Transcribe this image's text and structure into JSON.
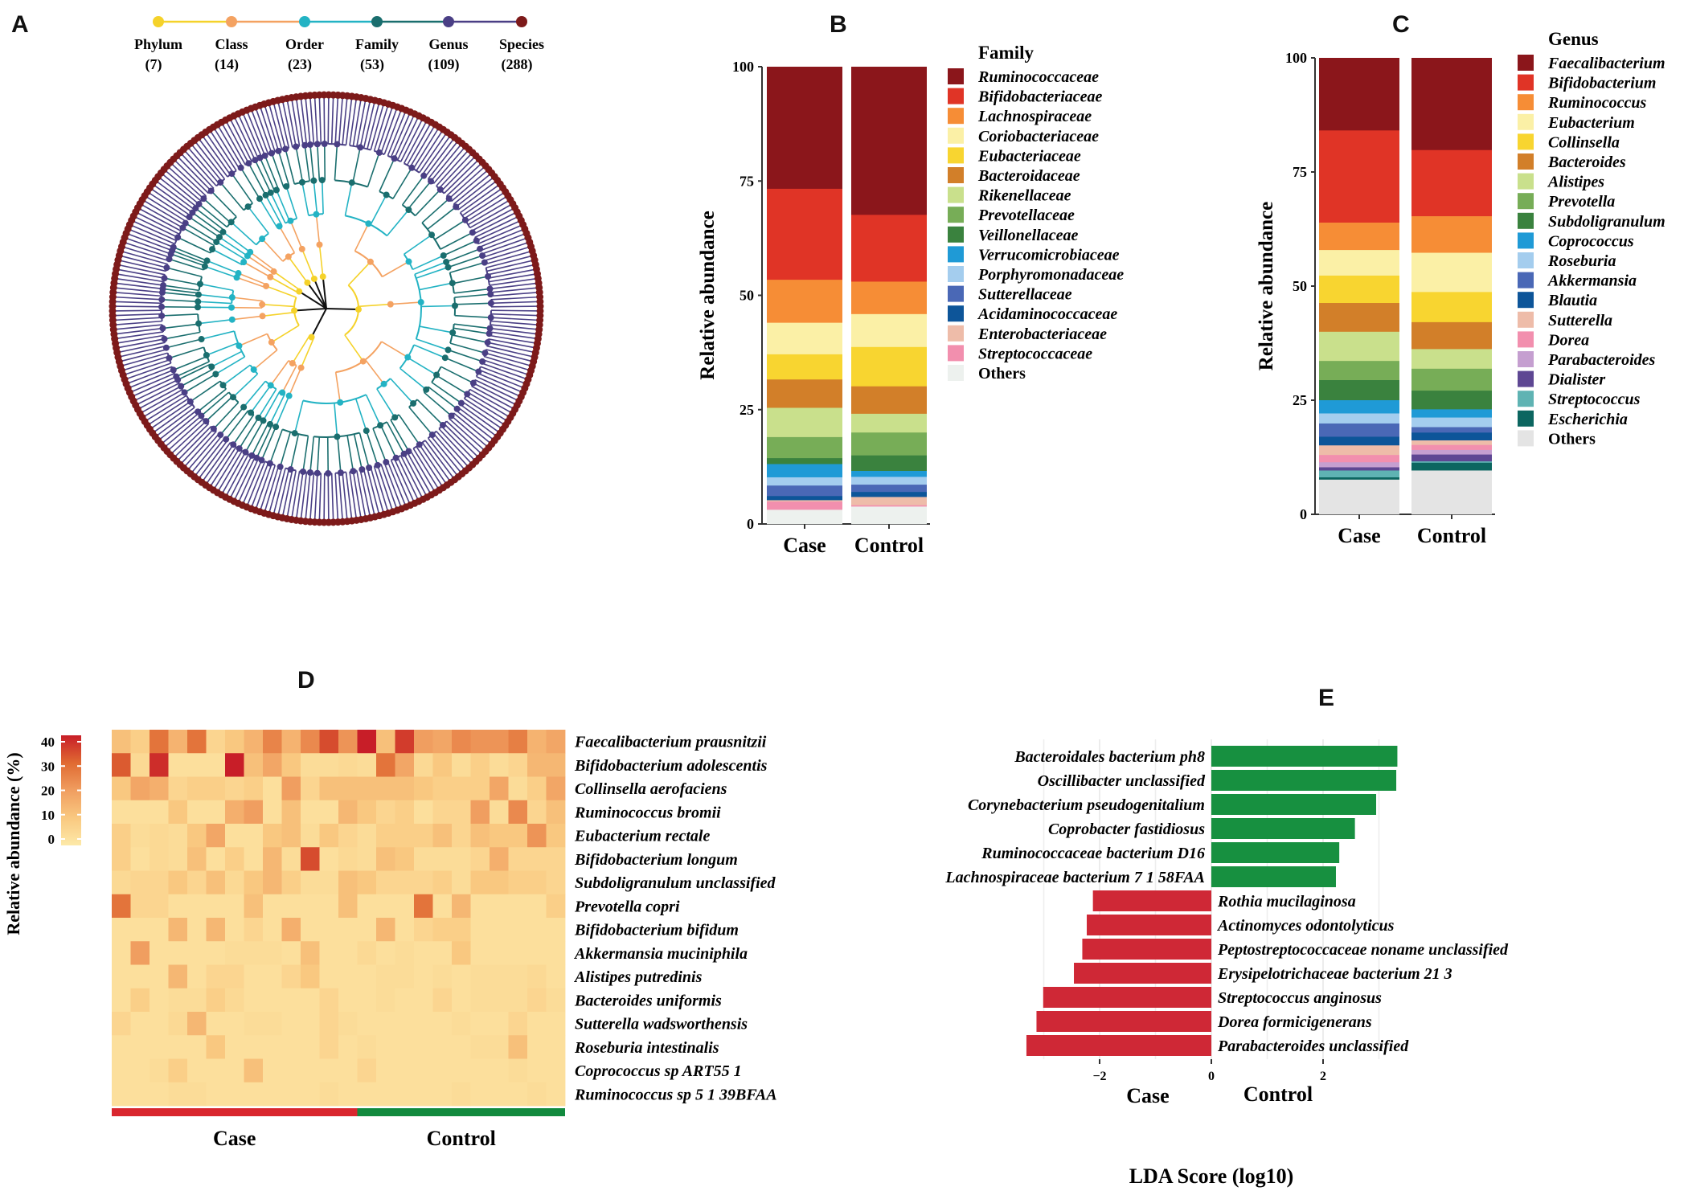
{
  "panel_labels": [
    "A",
    "B",
    "C",
    "D",
    "E"
  ],
  "colors": {
    "phylum": "#f5d22a",
    "class": "#f4a261",
    "order": "#23b3c4",
    "family": "#1a6e6e",
    "genus": "#4a3f85",
    "species": "#7d1a1a",
    "case": "#d9262e",
    "control": "#128a3e",
    "lda_case": "#cf2836",
    "lda_control": "#179040"
  },
  "chart_data": [
    {
      "panel": "A",
      "type": "tree",
      "levels": [
        {
          "name": "Phylum",
          "count_label": "(7)",
          "count": 7
        },
        {
          "name": "Class",
          "count_label": "(14)",
          "count": 14
        },
        {
          "name": "Order",
          "count_label": "(23)",
          "count": 23
        },
        {
          "name": "Family",
          "count_label": "(53)",
          "count": 53
        },
        {
          "name": "Genus",
          "count_label": "(109)",
          "count": 109
        },
        {
          "name": "Species",
          "count_label": "(288)",
          "count": 288
        }
      ]
    },
    {
      "panel": "B",
      "type": "bar",
      "stacked": true,
      "ylabel": "Relative abundance",
      "ylim": [
        0,
        100
      ],
      "yticks": [
        0,
        25,
        50,
        75,
        100
      ],
      "categories": [
        "Case",
        "Control"
      ],
      "legend_title": "Family",
      "series": [
        {
          "name": "Ruminococcaceae",
          "color": "#8b161b",
          "values": [
            26.7,
            32.4
          ]
        },
        {
          "name": "Bifidobacteriaceae",
          "color": "#e03426",
          "values": [
            19.9,
            14.6
          ]
        },
        {
          "name": "Lachnospiraceae",
          "color": "#f68d36",
          "values": [
            9.4,
            7.1
          ]
        },
        {
          "name": "Coriobacteriaceae",
          "color": "#fbf0a6",
          "values": [
            6.9,
            7.2
          ]
        },
        {
          "name": "Eubacteriaceae",
          "color": "#f8d530",
          "values": [
            5.5,
            8.6
          ]
        },
        {
          "name": "Bacteroidaceae",
          "color": "#d27f29",
          "values": [
            6.2,
            6.0
          ]
        },
        {
          "name": "Rikenellaceae",
          "color": "#c9e08c",
          "values": [
            6.4,
            4.1
          ]
        },
        {
          "name": "Prevotellaceae",
          "color": "#77ad57",
          "values": [
            4.6,
            5.0
          ]
        },
        {
          "name": "Veillonellaceae",
          "color": "#3a823e",
          "values": [
            1.3,
            3.4
          ]
        },
        {
          "name": "Verrucomicrobiaceae",
          "color": "#1f9ad6",
          "values": [
            2.9,
            1.3
          ]
        },
        {
          "name": "Porphyromonadaceae",
          "color": "#a4cdee",
          "values": [
            1.8,
            1.7
          ]
        },
        {
          "name": "Sutterellaceae",
          "color": "#4a68b6",
          "values": [
            2.3,
            1.6
          ]
        },
        {
          "name": "Acidaminococcaceae",
          "color": "#0d5599",
          "values": [
            0.9,
            1.1
          ]
        },
        {
          "name": "Enterobacteriaceae",
          "color": "#eebca9",
          "values": [
            0.3,
            1.8
          ]
        },
        {
          "name": "Streptococcaceae",
          "color": "#f28fae",
          "values": [
            1.8,
            0.3
          ]
        },
        {
          "name": "Others",
          "color": "#edf1ee",
          "values": [
            3.1,
            3.8
          ]
        }
      ]
    },
    {
      "panel": "C",
      "type": "bar",
      "stacked": true,
      "ylabel": "Relative abundance",
      "ylim": [
        0,
        100
      ],
      "yticks": [
        0,
        25,
        50,
        75,
        100
      ],
      "categories": [
        "Case",
        "Control"
      ],
      "legend_title": "Genus",
      "series": [
        {
          "name": "Faecalibacterium",
          "color": "#8b161b",
          "values": [
            15.9,
            20.2
          ]
        },
        {
          "name": "Bifidobacterium",
          "color": "#e03426",
          "values": [
            20.2,
            14.5
          ]
        },
        {
          "name": "Ruminococcus",
          "color": "#f68d36",
          "values": [
            6.0,
            8.0
          ]
        },
        {
          "name": "Eubacterium",
          "color": "#fbf0a6",
          "values": [
            5.6,
            8.6
          ]
        },
        {
          "name": "Collinsella",
          "color": "#f8d530",
          "values": [
            6.0,
            6.6
          ]
        },
        {
          "name": "Bacteroides",
          "color": "#d27f29",
          "values": [
            6.3,
            5.9
          ]
        },
        {
          "name": "Alistipes",
          "color": "#c9e08c",
          "values": [
            6.4,
            4.3
          ]
        },
        {
          "name": "Prevotella",
          "color": "#77ad57",
          "values": [
            4.2,
            4.8
          ]
        },
        {
          "name": "Subdoligranulum",
          "color": "#3a823e",
          "values": [
            4.4,
            4.1
          ]
        },
        {
          "name": "Coprococcus",
          "color": "#1f9ad6",
          "values": [
            2.9,
            1.8
          ]
        },
        {
          "name": "Roseburia",
          "color": "#a4cdee",
          "values": [
            2.2,
            2.1
          ]
        },
        {
          "name": "Akkermansia",
          "color": "#4a68b6",
          "values": [
            2.9,
            1.2
          ]
        },
        {
          "name": "Blautia",
          "color": "#0d5599",
          "values": [
            1.9,
            1.7
          ]
        },
        {
          "name": "Sutterella",
          "color": "#eebca9",
          "values": [
            2.1,
            1.0
          ]
        },
        {
          "name": "Dorea",
          "color": "#f28fae",
          "values": [
            1.6,
            1.1
          ]
        },
        {
          "name": "Parabacteroides",
          "color": "#c59fd0",
          "values": [
            1.1,
            1.0
          ]
        },
        {
          "name": "Dialister",
          "color": "#5e4793",
          "values": [
            0.7,
            1.5
          ]
        },
        {
          "name": "Streptococcus",
          "color": "#5fb3b3",
          "values": [
            1.5,
            0.3
          ]
        },
        {
          "name": "Escherichia",
          "color": "#0c6660",
          "values": [
            0.5,
            1.7
          ]
        },
        {
          "name": "Others",
          "color": "#e4e4e4",
          "values": [
            7.6,
            9.6
          ]
        }
      ]
    },
    {
      "panel": "D",
      "type": "heatmap",
      "colorbar_label": "Relative abundance (%)",
      "colorbar_ticks": [
        0,
        10,
        20,
        30,
        40
      ],
      "value_range": [
        0,
        40
      ],
      "groups": [
        {
          "name": "Case",
          "n": 13
        },
        {
          "name": "Control",
          "n": 11
        }
      ],
      "rows": [
        "Faecalibacterium prausnitzii",
        "Bifidobacterium adolescentis",
        "Collinsella aerofaciens",
        "Ruminococcus bromii",
        "Eubacterium rectale",
        "Bifidobacterium longum",
        "Subdoligranulum unclassified",
        "Prevotella copri",
        "Bifidobacterium bifidum",
        "Akkermansia muciniphila",
        "Alistipes putredinis",
        "Bacteroides uniformis",
        "Sutterella wadsworthensis",
        "Roseburia intestinalis",
        "Coprococcus sp ART55 1",
        "Ruminococcus sp 5 1 39BFAA"
      ],
      "values": [
        [
          12,
          8,
          28,
          15,
          28,
          6,
          10,
          15,
          25,
          15,
          24,
          34,
          22,
          40,
          12,
          36,
          20,
          18,
          24,
          22,
          22,
          26,
          15,
          18
        ],
        [
          32,
          5,
          38,
          3,
          3,
          3,
          40,
          12,
          18,
          10,
          4,
          4,
          5,
          4,
          28,
          18,
          5,
          10,
          4,
          8,
          4,
          6,
          14,
          14
        ],
        [
          10,
          18,
          16,
          6,
          8,
          8,
          6,
          8,
          3,
          20,
          6,
          12,
          12,
          12,
          12,
          12,
          10,
          8,
          8,
          8,
          18,
          4,
          8,
          18
        ],
        [
          3,
          3,
          3,
          10,
          3,
          3,
          16,
          20,
          3,
          12,
          3,
          3,
          14,
          10,
          6,
          8,
          3,
          6,
          6,
          20,
          4,
          24,
          6,
          12
        ],
        [
          8,
          4,
          5,
          4,
          10,
          18,
          3,
          3,
          10,
          12,
          4,
          10,
          6,
          4,
          8,
          8,
          8,
          12,
          6,
          12,
          10,
          10,
          22,
          10
        ],
        [
          8,
          3,
          5,
          4,
          12,
          3,
          8,
          3,
          14,
          4,
          34,
          3,
          5,
          4,
          12,
          10,
          4,
          4,
          4,
          6,
          16,
          6,
          6,
          6
        ],
        [
          5,
          6,
          6,
          10,
          6,
          12,
          5,
          10,
          14,
          8,
          4,
          4,
          12,
          10,
          6,
          6,
          6,
          8,
          4,
          10,
          10,
          8,
          8,
          6
        ],
        [
          28,
          6,
          6,
          3,
          3,
          3,
          3,
          12,
          3,
          3,
          3,
          3,
          12,
          3,
          3,
          3,
          28,
          3,
          14,
          3,
          3,
          3,
          3,
          8
        ],
        [
          3,
          3,
          3,
          14,
          3,
          14,
          3,
          6,
          3,
          16,
          3,
          3,
          3,
          3,
          14,
          3,
          6,
          8,
          8,
          3,
          3,
          3,
          3,
          3
        ],
        [
          3,
          20,
          3,
          3,
          3,
          3,
          4,
          4,
          4,
          3,
          12,
          3,
          3,
          5,
          3,
          4,
          3,
          3,
          10,
          3,
          3,
          3,
          3,
          3
        ],
        [
          3,
          3,
          3,
          14,
          3,
          6,
          6,
          3,
          3,
          6,
          10,
          3,
          3,
          3,
          4,
          4,
          3,
          4,
          3,
          4,
          4,
          4,
          5,
          3
        ],
        [
          3,
          8,
          3,
          4,
          4,
          8,
          5,
          3,
          3,
          3,
          3,
          6,
          3,
          3,
          4,
          3,
          3,
          6,
          3,
          4,
          4,
          4,
          6,
          4
        ],
        [
          6,
          3,
          3,
          5,
          14,
          3,
          3,
          4,
          4,
          3,
          3,
          6,
          4,
          3,
          3,
          3,
          3,
          3,
          4,
          3,
          3,
          6,
          3,
          3
        ],
        [
          3,
          3,
          3,
          3,
          3,
          10,
          3,
          3,
          3,
          3,
          3,
          6,
          3,
          4,
          3,
          3,
          3,
          3,
          3,
          4,
          4,
          12,
          3,
          3
        ],
        [
          3,
          3,
          4,
          8,
          3,
          3,
          3,
          12,
          3,
          3,
          3,
          3,
          3,
          6,
          3,
          3,
          3,
          3,
          3,
          3,
          3,
          4,
          3,
          3
        ],
        [
          3,
          3,
          3,
          4,
          4,
          3,
          3,
          3,
          3,
          3,
          3,
          4,
          3,
          3,
          3,
          3,
          3,
          3,
          4,
          3,
          3,
          3,
          4,
          3
        ]
      ]
    },
    {
      "panel": "E",
      "type": "bar",
      "orientation": "horizontal",
      "xlabel": "LDA Score (log10)",
      "xticks": [
        -2,
        0,
        2
      ],
      "xlim": [
        -3.35,
        3.6
      ],
      "group_labels": [
        "Case",
        "Control"
      ],
      "bars": [
        {
          "name": "Bacteroidales bacterium ph8",
          "value": 3.33
        },
        {
          "name": "Oscillibacter unclassified",
          "value": 3.31
        },
        {
          "name": "Corynebacterium pseudogenitalium",
          "value": 2.95
        },
        {
          "name": "Coprobacter fastidiosus",
          "value": 2.57
        },
        {
          "name": "Ruminococcaceae bacterium D16",
          "value": 2.29
        },
        {
          "name": "Lachnospiraceae bacterium 7 1 58FAA",
          "value": 2.23
        },
        {
          "name": "Rothia mucilaginosa",
          "value": -2.12
        },
        {
          "name": "Actinomyces odontolyticus",
          "value": -2.23
        },
        {
          "name": "Peptostreptococcaceae noname unclassified",
          "value": -2.31
        },
        {
          "name": "Erysipelotrichaceae bacterium 21 3",
          "value": -2.46
        },
        {
          "name": "Streptococcus anginosus",
          "value": -3.01
        },
        {
          "name": "Dorea formicigenerans",
          "value": -3.13
        },
        {
          "name": "Parabacteroides unclassified",
          "value": -3.31
        }
      ]
    }
  ]
}
